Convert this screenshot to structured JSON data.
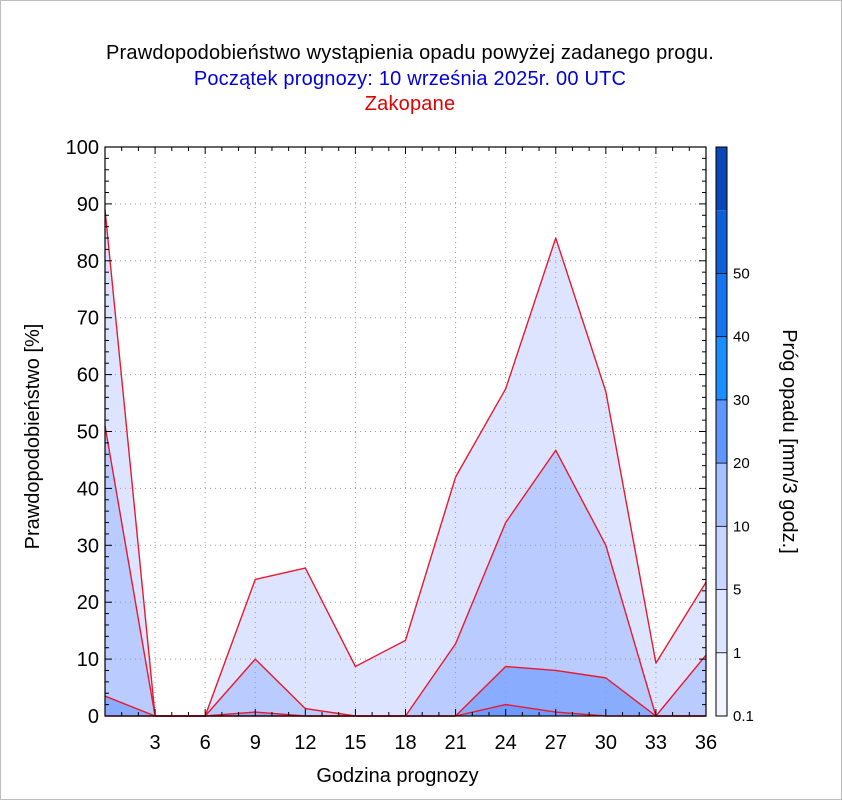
{
  "header": {
    "title": "Prawdopodobieństwo wystąpienia opadu powyżej zadanego progu.",
    "subtitle": "Początek prognozy: 10 września 2025r. 00 UTC",
    "location": "Zakopane"
  },
  "colors": {
    "title": "#000000",
    "subtitle": "#0000dd",
    "location": "#e00000",
    "outline": "#e8192f",
    "grid": "#9a9a9a"
  },
  "chart_data": {
    "type": "area",
    "xlabel": "Godzina prognozy",
    "ylabel": "Prawdopodobieństwo [%]",
    "xlim": [
      0,
      36
    ],
    "ylim": [
      0,
      100
    ],
    "x_ticks": [
      3,
      6,
      9,
      12,
      15,
      18,
      21,
      24,
      27,
      30,
      33,
      36
    ],
    "y_ticks": [
      0,
      10,
      20,
      30,
      40,
      50,
      60,
      70,
      80,
      90,
      100
    ],
    "grid": true,
    "x": [
      0,
      3,
      6,
      9,
      12,
      15,
      18,
      21,
      24,
      27,
      30,
      33,
      36
    ],
    "series": [
      {
        "threshold": "0.1",
        "color": "#dde4ff",
        "values": [
          89,
          0,
          0,
          24,
          26,
          8.7,
          13.3,
          42,
          57.5,
          84,
          57,
          9.3,
          23.5
        ]
      },
      {
        "threshold": "1",
        "color": "#b9cbff",
        "values": [
          51,
          0,
          0,
          10,
          1.3,
          0,
          0,
          12.7,
          34,
          46.7,
          30,
          0,
          10.7
        ]
      },
      {
        "threshold": "5",
        "color": "#89acff",
        "values": [
          3.5,
          0,
          0,
          0.7,
          0,
          0,
          0,
          0,
          8.7,
          8,
          6.7,
          0,
          0
        ]
      },
      {
        "threshold": "10",
        "color": "#6f99ff",
        "values": [
          0,
          0,
          0,
          0,
          0,
          0,
          0,
          0,
          2,
          0.7,
          0,
          0,
          0
        ]
      }
    ],
    "colorbar": {
      "label": "Próg opadu [mm/3 godz.]",
      "tick_labels": [
        "0.1",
        "1",
        "5",
        "10",
        "20",
        "30",
        "40",
        "50"
      ],
      "colors": [
        "#f2f4ff",
        "#dde4ff",
        "#c8d6ff",
        "#a7c1ff",
        "#5f97ff",
        "#1a8eff",
        "#1574ee",
        "#0f60d6",
        "#0a48b8"
      ]
    }
  }
}
